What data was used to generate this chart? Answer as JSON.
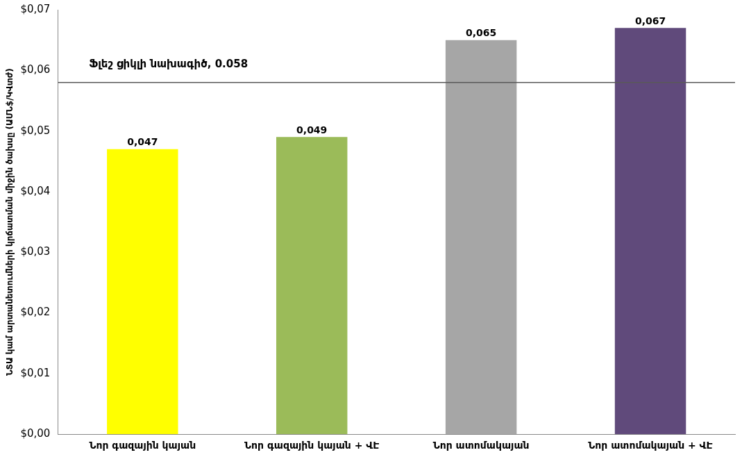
{
  "chart_data": {
    "type": "bar",
    "ylabel": "ՆՏԱ կամ արտանետումների կրճատման միջին ծախսը (ԱՄՆ$/ԿՎտժ)",
    "categories": [
      "Նոր գազային կայան",
      "Նոր գազային կայան + ՎԷ",
      "Նոր ատոմակայան",
      "Նոր ատոմակայան + ՎԷ"
    ],
    "values": [
      0.047,
      0.049,
      0.065,
      0.067
    ],
    "colors": [
      "#ffff00",
      "#9bbb59",
      "#a6a6a6",
      "#604a7b"
    ],
    "value_labels": [
      "0,047",
      "0,049",
      "0,065",
      "0,067"
    ],
    "ylim": [
      0,
      0.07
    ],
    "yticks": [
      {
        "value": 0,
        "label": "$0,00"
      },
      {
        "value": 0.01,
        "label": "$0,01"
      },
      {
        "value": 0.02,
        "label": "$0,02"
      },
      {
        "value": 0.03,
        "label": "$0,03"
      },
      {
        "value": 0.04,
        "label": "$0,04"
      },
      {
        "value": 0.05,
        "label": "$0,05"
      },
      {
        "value": 0.06,
        "label": "$0,06"
      },
      {
        "value": 0.07,
        "label": "$0,07"
      }
    ],
    "ref_lines": [
      {
        "axis": "y",
        "value": 0.058,
        "label": "Ֆլեշ ցիկլի նախագիծ, 0.058",
        "color": "#595959"
      }
    ],
    "grid": false,
    "legend": false
  }
}
